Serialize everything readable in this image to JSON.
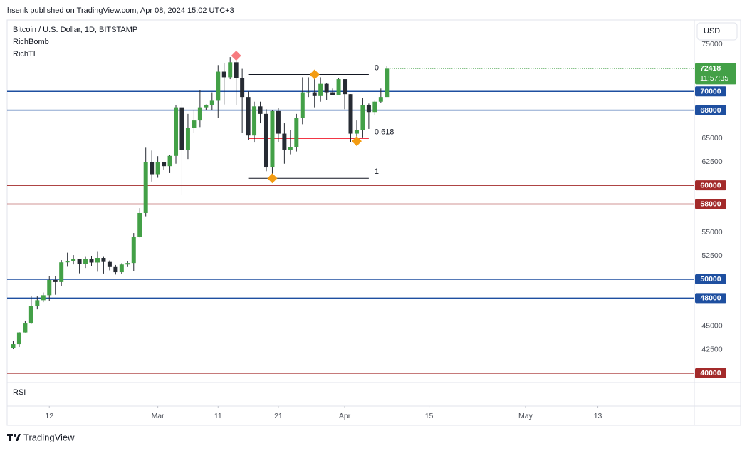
{
  "header": "hsenk published on TradingView.com, Apr 08, 2024 15:02 UTC+3",
  "footer": "TradingView",
  "chart_data": {
    "type": "candlestick",
    "title": "Bitcoin / U.S. Dollar, 1D, BITSTAMP",
    "indicators": [
      "RichBomb",
      "RichTL"
    ],
    "currency": "USD",
    "lower_pane": "RSI",
    "countdown": "11:57:35",
    "up_color": "#43a047",
    "down_color": "#262b33",
    "x": [
      "2024-02-06",
      "2024-02-07",
      "2024-02-08",
      "2024-02-09",
      "2024-02-10",
      "2024-02-11",
      "2024-02-12",
      "2024-02-13",
      "2024-02-14",
      "2024-02-15",
      "2024-02-16",
      "2024-02-17",
      "2024-02-18",
      "2024-02-19",
      "2024-02-20",
      "2024-02-21",
      "2024-02-22",
      "2024-02-23",
      "2024-02-24",
      "2024-02-25",
      "2024-02-26",
      "2024-02-27",
      "2024-02-28",
      "2024-02-29",
      "2024-03-01",
      "2024-03-02",
      "2024-03-03",
      "2024-03-04",
      "2024-03-05",
      "2024-03-06",
      "2024-03-07",
      "2024-03-08",
      "2024-03-09",
      "2024-03-10",
      "2024-03-11",
      "2024-03-12",
      "2024-03-13",
      "2024-03-14",
      "2024-03-15",
      "2024-03-16",
      "2024-03-17",
      "2024-03-18",
      "2024-03-19",
      "2024-03-20",
      "2024-03-21",
      "2024-03-22",
      "2024-03-23",
      "2024-03-24",
      "2024-03-25",
      "2024-03-26",
      "2024-03-27",
      "2024-03-28",
      "2024-03-29",
      "2024-03-30",
      "2024-03-31",
      "2024-04-01",
      "2024-04-02",
      "2024-04-03",
      "2024-04-04",
      "2024-04-05",
      "2024-04-06",
      "2024-04-07",
      "2024-04-08"
    ],
    "open": [
      42660,
      43090,
      44340,
      45290,
      47150,
      47770,
      48300,
      49920,
      49700,
      51800,
      51940,
      52130,
      51640,
      52130,
      51780,
      52270,
      51840,
      51300,
      50750,
      51570,
      51730,
      54490,
      57050,
      62500,
      61180,
      62440,
      62040,
      63130,
      68300,
      63780,
      66100,
      66900,
      68300,
      68500,
      69000,
      72100,
      71500,
      73100,
      71400,
      69400,
      65300,
      68400,
      67600,
      61900,
      67900,
      65500,
      63800,
      64100,
      67200,
      69900,
      69900,
      69500,
      70800,
      69900,
      69600,
      71300,
      69700,
      65500,
      65900,
      68500,
      67800,
      68900,
      69400
    ],
    "high": [
      43400,
      44370,
      45600,
      48200,
      48170,
      48590,
      50330,
      50370,
      52040,
      52830,
      52570,
      52190,
      52380,
      52480,
      52990,
      52380,
      52000,
      51520,
      51700,
      51960,
      54920,
      57570,
      64000,
      63700,
      63100,
      62440,
      63200,
      68500,
      69000,
      67600,
      67980,
      70100,
      68600,
      69900,
      72800,
      73000,
      73650,
      73800,
      72400,
      70000,
      68900,
      68900,
      68100,
      68000,
      68200,
      66600,
      65900,
      67600,
      71500,
      71500,
      71600,
      71500,
      70900,
      70300,
      71400,
      71300,
      69700,
      66900,
      69300,
      68700,
      69000,
      70300,
      72700
    ],
    "low": [
      42570,
      42790,
      44330,
      45250,
      46800,
      47560,
      47700,
      48350,
      49270,
      51330,
      51580,
      50630,
      51200,
      51400,
      50800,
      50610,
      50950,
      50500,
      50600,
      51300,
      50900,
      54450,
      56700,
      60400,
      60800,
      61680,
      61300,
      62300,
      59000,
      62800,
      65600,
      66200,
      68000,
      68000,
      67200,
      68600,
      71300,
      68500,
      65600,
      64800,
      64550,
      66600,
      61500,
      60800,
      64600,
      62300,
      63300,
      63600,
      66500,
      69400,
      68300,
      68900,
      69100,
      69600,
      69600,
      68100,
      64600,
      64500,
      65100,
      66000,
      67500,
      68800,
      69400
    ],
    "close": [
      43090,
      44340,
      45290,
      47150,
      47770,
      48300,
      49920,
      49700,
      51800,
      51940,
      52130,
      51640,
      52130,
      51780,
      52270,
      51840,
      51300,
      50750,
      51570,
      51730,
      54490,
      57050,
      62500,
      61180,
      62440,
      62040,
      63130,
      68300,
      63780,
      66100,
      66900,
      68300,
      68500,
      69000,
      72100,
      71500,
      73100,
      71400,
      69400,
      65300,
      68400,
      67600,
      61900,
      67900,
      65500,
      63800,
      64100,
      67200,
      69900,
      69900,
      69500,
      70800,
      69900,
      69600,
      71300,
      69700,
      65500,
      65900,
      68500,
      67800,
      68900,
      69400,
      72418
    ],
    "ylim": [
      39000,
      77600
    ],
    "yticks": [
      42500,
      45000,
      52500,
      55000,
      62500,
      65000,
      75000
    ],
    "xlim": [
      "2024-02-05",
      "2024-05-29"
    ],
    "xticks": [
      {
        "value": "2024-02-12",
        "label": "12"
      },
      {
        "value": "2024-03-01",
        "label": "Mar"
      },
      {
        "value": "2024-03-11",
        "label": "11"
      },
      {
        "value": "2024-03-21",
        "label": "21"
      },
      {
        "value": "2024-04-01",
        "label": "Apr"
      },
      {
        "value": "2024-04-15",
        "label": "15"
      },
      {
        "value": "2024-05-01",
        "label": "May"
      },
      {
        "value": "2024-05-13",
        "label": "13"
      }
    ],
    "levels": [
      {
        "value": 70000,
        "color": "#1e4fa0"
      },
      {
        "value": 68000,
        "color": "#1e4fa0"
      },
      {
        "value": 60000,
        "color": "#a32a2a"
      },
      {
        "value": 58000,
        "color": "#a32a2a"
      },
      {
        "value": 50000,
        "color": "#1e4fa0"
      },
      {
        "value": 48000,
        "color": "#1e4fa0"
      },
      {
        "value": 40000,
        "color": "#a32a2a"
      }
    ],
    "fib": {
      "from": "2024-03-16",
      "to": "2024-04-05",
      "levels": [
        0,
        0.618,
        1
      ],
      "prices": [
        71800,
        64970,
        60750
      ],
      "colors": [
        "#131722",
        "#f23645",
        "#131722"
      ]
    },
    "markers": [
      {
        "x": "2024-03-14",
        "value": 73800,
        "color": "#f77c80"
      },
      {
        "x": "2024-03-27",
        "value": 71800,
        "color": "#f39c12"
      },
      {
        "x": "2024-03-20",
        "value": 60750,
        "color": "#f39c12"
      },
      {
        "x": "2024-04-03",
        "value": 64700,
        "color": "#f39c12"
      }
    ]
  }
}
